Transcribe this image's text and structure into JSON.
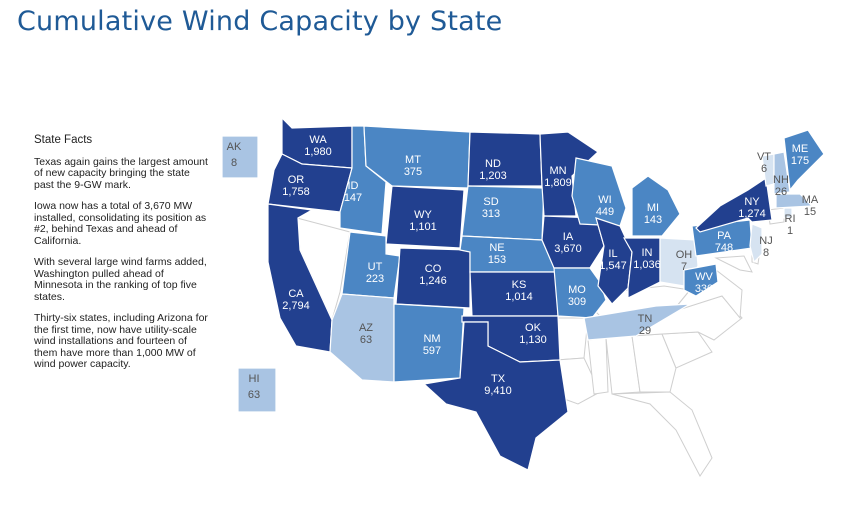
{
  "title": "Cumulative Wind Capacity by State",
  "facts": {
    "heading": "State Facts",
    "paragraphs": [
      "Texas again gains the largest amount of new capacity bringing the state past the 9-GW mark.",
      "Iowa now has a total of 3,670 MW installed, consolidating its position as #2, behind Texas and ahead of California.",
      "With several large wind farms added, Washington pulled ahead of Minnesota in the ranking of top five states.",
      "Thirty-six states, including Arizona for the first time, now have utility-scale wind installations and fourteen of them have more than 1,000 MW of wind power capacity."
    ]
  },
  "colors": {
    "tier_high": "#22408f",
    "tier_mid": "#4b86c4",
    "tier_low": "#a9c4e3",
    "tier_min": "#d6e3f1",
    "none": "#ffffff",
    "border": "#cfcfcf",
    "label_dark_text": "#ffffff",
    "label_light_text": "#555555"
  },
  "states": [
    {
      "abbr": "WA",
      "value": "1,980",
      "tier": "high"
    },
    {
      "abbr": "OR",
      "value": "1,758",
      "tier": "high"
    },
    {
      "abbr": "CA",
      "value": "2,794",
      "tier": "high"
    },
    {
      "abbr": "ID",
      "value": "147",
      "tier": "mid"
    },
    {
      "abbr": "MT",
      "value": "375",
      "tier": "mid"
    },
    {
      "abbr": "WY",
      "value": "1,101",
      "tier": "high"
    },
    {
      "abbr": "UT",
      "value": "223",
      "tier": "mid"
    },
    {
      "abbr": "AZ",
      "value": "63",
      "tier": "low"
    },
    {
      "abbr": "CO",
      "value": "1,246",
      "tier": "high"
    },
    {
      "abbr": "NM",
      "value": "597",
      "tier": "mid"
    },
    {
      "abbr": "ND",
      "value": "1,203",
      "tier": "high"
    },
    {
      "abbr": "SD",
      "value": "313",
      "tier": "mid"
    },
    {
      "abbr": "NE",
      "value": "153",
      "tier": "mid"
    },
    {
      "abbr": "KS",
      "value": "1,014",
      "tier": "high"
    },
    {
      "abbr": "OK",
      "value": "1,130",
      "tier": "high"
    },
    {
      "abbr": "TX",
      "value": "9,410",
      "tier": "high"
    },
    {
      "abbr": "MN",
      "value": "1,809",
      "tier": "high"
    },
    {
      "abbr": "IA",
      "value": "3,670",
      "tier": "high"
    },
    {
      "abbr": "MO",
      "value": "309",
      "tier": "mid"
    },
    {
      "abbr": "WI",
      "value": "449",
      "tier": "mid"
    },
    {
      "abbr": "IL",
      "value": "1,547",
      "tier": "high"
    },
    {
      "abbr": "MI",
      "value": "143",
      "tier": "mid"
    },
    {
      "abbr": "IN",
      "value": "1,036",
      "tier": "high"
    },
    {
      "abbr": "OH",
      "value": "7",
      "tier": "min"
    },
    {
      "abbr": "TN",
      "value": "29",
      "tier": "low"
    },
    {
      "abbr": "WV",
      "value": "330",
      "tier": "mid"
    },
    {
      "abbr": "PA",
      "value": "748",
      "tier": "mid"
    },
    {
      "abbr": "NY",
      "value": "1,274",
      "tier": "high"
    },
    {
      "abbr": "VT",
      "value": "6",
      "tier": "min"
    },
    {
      "abbr": "NH",
      "value": "26",
      "tier": "low"
    },
    {
      "abbr": "ME",
      "value": "175",
      "tier": "mid"
    },
    {
      "abbr": "MA",
      "value": "15",
      "tier": "low"
    },
    {
      "abbr": "RI",
      "value": "1",
      "tier": "min"
    },
    {
      "abbr": "NJ",
      "value": "8",
      "tier": "min"
    },
    {
      "abbr": "AK",
      "value": "8",
      "tier": "low"
    },
    {
      "abbr": "HI",
      "value": "63",
      "tier": "low"
    }
  ]
}
